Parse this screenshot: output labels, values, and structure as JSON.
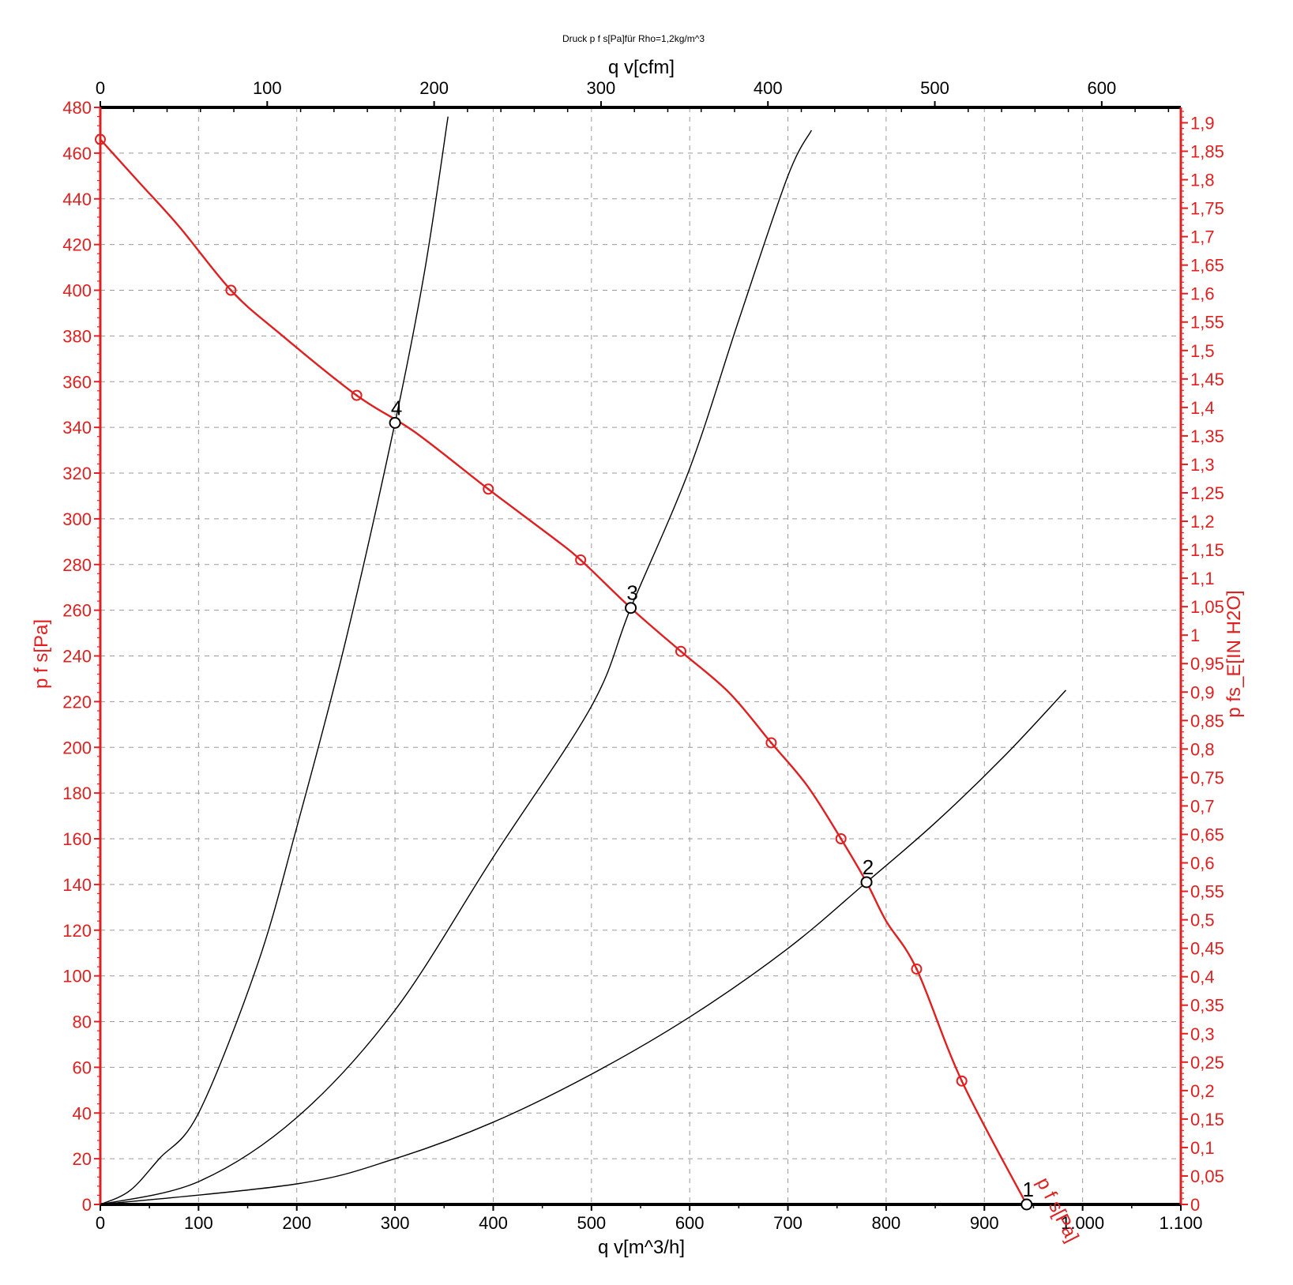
{
  "chart_data": {
    "type": "line",
    "title": "Druck p f s[Pa]für Rho=1,2kg/m^3",
    "xlabel": "q v[m^3/h]",
    "x2label": "q v[cfm]",
    "ylabel": "p f s[Pa]",
    "y2label": "p fs_E[IN H2O]",
    "xlim": [
      0,
      1100
    ],
    "ylim": [
      0,
      480
    ],
    "x2lim": [
      0,
      647.4
    ],
    "y2lim": [
      0,
      1.927
    ],
    "grid": true,
    "x_ticks": [
      0,
      100,
      200,
      300,
      400,
      500,
      600,
      700,
      800,
      900,
      1000,
      1100
    ],
    "x_tick_labels": [
      "0",
      "100",
      "200",
      "300",
      "400",
      "500",
      "600",
      "700",
      "800",
      "900",
      "1.000",
      "1.100"
    ],
    "y_ticks": [
      0,
      20,
      40,
      60,
      80,
      100,
      120,
      140,
      160,
      180,
      200,
      220,
      240,
      260,
      280,
      300,
      320,
      340,
      360,
      380,
      400,
      420,
      440,
      460,
      480
    ],
    "y_tick_labels": [
      "0",
      "20",
      "40",
      "60",
      "80",
      "100",
      "120",
      "140",
      "160",
      "180",
      "200",
      "220",
      "240",
      "260",
      "280",
      "300",
      "320",
      "340",
      "360",
      "380",
      "400",
      "420",
      "440",
      "460",
      "480"
    ],
    "x2_ticks": [
      0,
      100,
      200,
      300,
      400,
      500,
      600
    ],
    "x2_tick_labels": [
      "0",
      "100",
      "200",
      "300",
      "400",
      "500",
      "600"
    ],
    "y2_ticks": [
      0,
      0.05,
      0.1,
      0.15,
      0.2,
      0.25,
      0.3,
      0.35,
      0.4,
      0.45,
      0.5,
      0.55,
      0.6,
      0.65,
      0.7,
      0.75,
      0.8,
      0.85,
      0.9,
      0.95,
      1,
      1.05,
      1.1,
      1.15,
      1.2,
      1.25,
      1.3,
      1.35,
      1.4,
      1.45,
      1.5,
      1.55,
      1.6,
      1.65,
      1.7,
      1.75,
      1.8,
      1.85,
      1.9
    ],
    "y2_tick_labels": [
      "0",
      "0,05",
      "0,1",
      "0,15",
      "0,2",
      "0,25",
      "0,3",
      "0,35",
      "0,4",
      "0,45",
      "0,5",
      "0,55",
      "0,6",
      "0,65",
      "0,7",
      "0,75",
      "0,8",
      "0,85",
      "0,9",
      "0,95",
      "1",
      "1,05",
      "1,1",
      "1,15",
      "1,2",
      "1,25",
      "1,3",
      "1,35",
      "1,4",
      "1,45",
      "1,5",
      "1,55",
      "1,6",
      "1,65",
      "1,7",
      "1,75",
      "1,8",
      "1,85",
      "1,9"
    ],
    "series": [
      {
        "name": "p f s[Pa]",
        "color": "#e02020",
        "x": [
          0,
          40,
          80,
          133,
          180,
          261,
          320,
          395,
          460,
          489,
          540,
          591,
          640,
          683,
          720,
          754,
          780,
          800,
          831,
          877,
          943
        ],
        "y": [
          466,
          447,
          428,
          400,
          382,
          354,
          338,
          313,
          292,
          282,
          261,
          242,
          224,
          202,
          183,
          160,
          141,
          124,
          103,
          54,
          0
        ],
        "markers_x": [
          0,
          133,
          261,
          395,
          489,
          591,
          683,
          754,
          831,
          877
        ],
        "markers_y": [
          466,
          400,
          354,
          313,
          282,
          242,
          202,
          160,
          103,
          54
        ]
      },
      {
        "color": "#000000",
        "x": [
          0,
          30,
          60,
          100,
          160,
          200,
          250,
          300,
          330,
          354
        ],
        "y": [
          0,
          6,
          20,
          40,
          105,
          165,
          247,
          342,
          408,
          476
        ]
      },
      {
        "color": "#000000",
        "x": [
          0,
          100,
          200,
          300,
          400,
          500,
          540,
          600,
          650,
          700,
          724
        ],
        "y": [
          0,
          10,
          38,
          85,
          152,
          218,
          261,
          322,
          387,
          450,
          470
        ]
      },
      {
        "color": "#000000",
        "x": [
          0,
          200,
          300,
          400,
          500,
          600,
          700,
          780,
          850,
          920,
          983
        ],
        "y": [
          0,
          9,
          20,
          36,
          57,
          82,
          112,
          141,
          167,
          196,
          225
        ]
      }
    ],
    "operating_points": [
      {
        "label": "1",
        "x": 943,
        "y": 0
      },
      {
        "label": "2",
        "x": 780,
        "y": 141
      },
      {
        "label": "3",
        "x": 540,
        "y": 261
      },
      {
        "label": "4",
        "x": 300,
        "y": 342
      }
    ],
    "curve_label": {
      "text": "p f s[Pa]",
      "x": 953,
      "y": 10
    }
  }
}
